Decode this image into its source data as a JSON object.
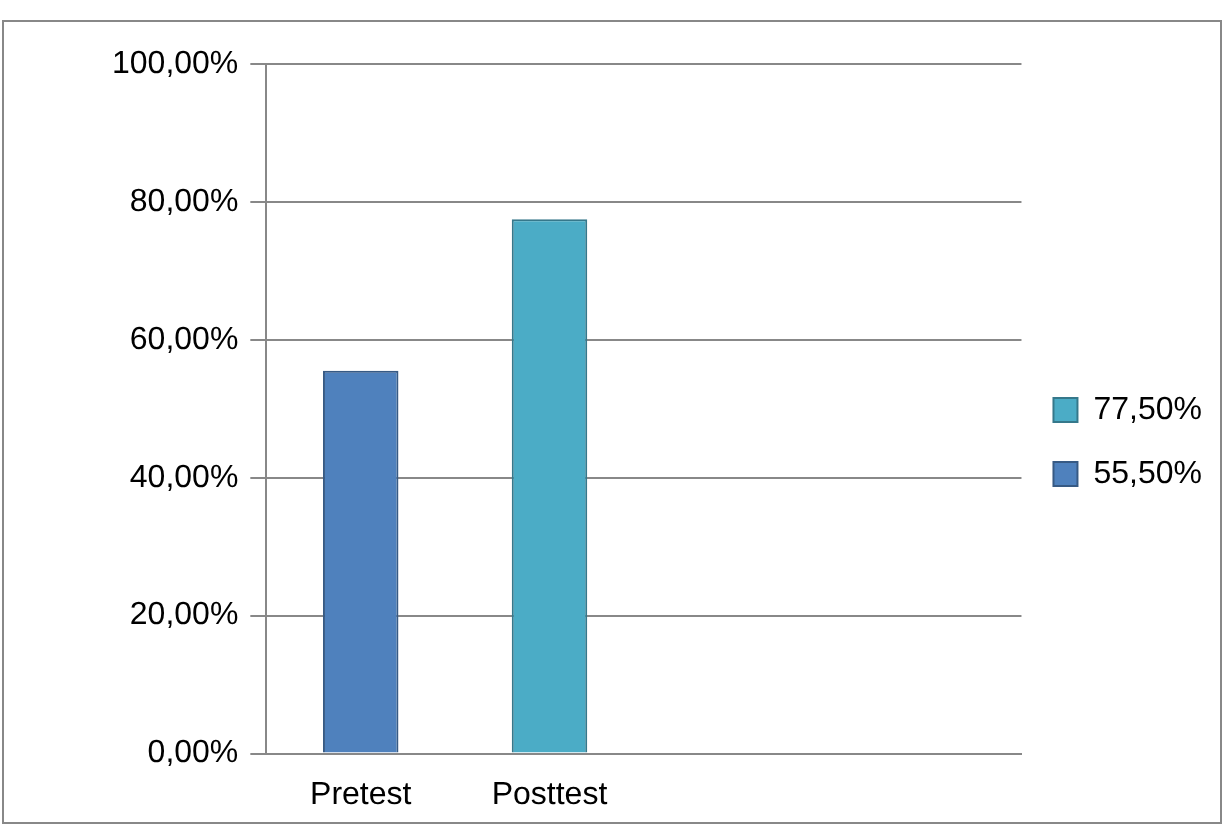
{
  "chart_data": {
    "type": "bar",
    "categories": [
      "Pretest",
      "Posttest",
      null,
      null
    ],
    "series": [
      {
        "name": "55,50%",
        "color": "#4f81bd",
        "values": [
          55.5,
          null,
          null,
          null
        ]
      },
      {
        "name": "77,50%",
        "color": "#4bacc6",
        "values": [
          null,
          77.5,
          null,
          null
        ]
      }
    ],
    "ylim": [
      0,
      100
    ],
    "yticks": [
      {
        "value": 0,
        "label": "0,00%"
      },
      {
        "value": 20,
        "label": "20,00%"
      },
      {
        "value": 40,
        "label": "40,00%"
      },
      {
        "value": 60,
        "label": "60,00%"
      },
      {
        "value": 80,
        "label": "80,00%"
      },
      {
        "value": 100,
        "label": "100,00%"
      }
    ],
    "grid": "y",
    "legend": "right"
  }
}
